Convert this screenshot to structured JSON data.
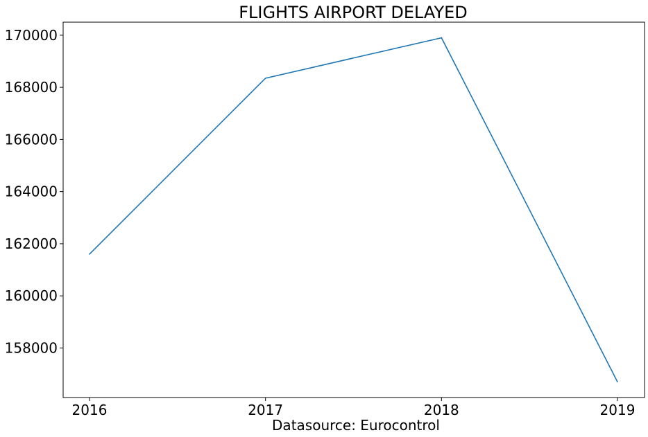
{
  "chart_data": {
    "type": "line",
    "title": "FLIGHTS AIRPORT DELAYED",
    "xlabel": "Datasource: Eurocontrol",
    "ylabel": "",
    "x": [
      "2016",
      "2017",
      "2018",
      "2019"
    ],
    "series": [
      {
        "values": [
          161600,
          168350,
          169900,
          156700
        ],
        "color": "#1f77b4"
      }
    ],
    "yticks": [
      158000,
      160000,
      162000,
      164000,
      166000,
      168000,
      170000
    ],
    "ylim": [
      156100,
      170500
    ],
    "grid": false,
    "legend": "none"
  }
}
